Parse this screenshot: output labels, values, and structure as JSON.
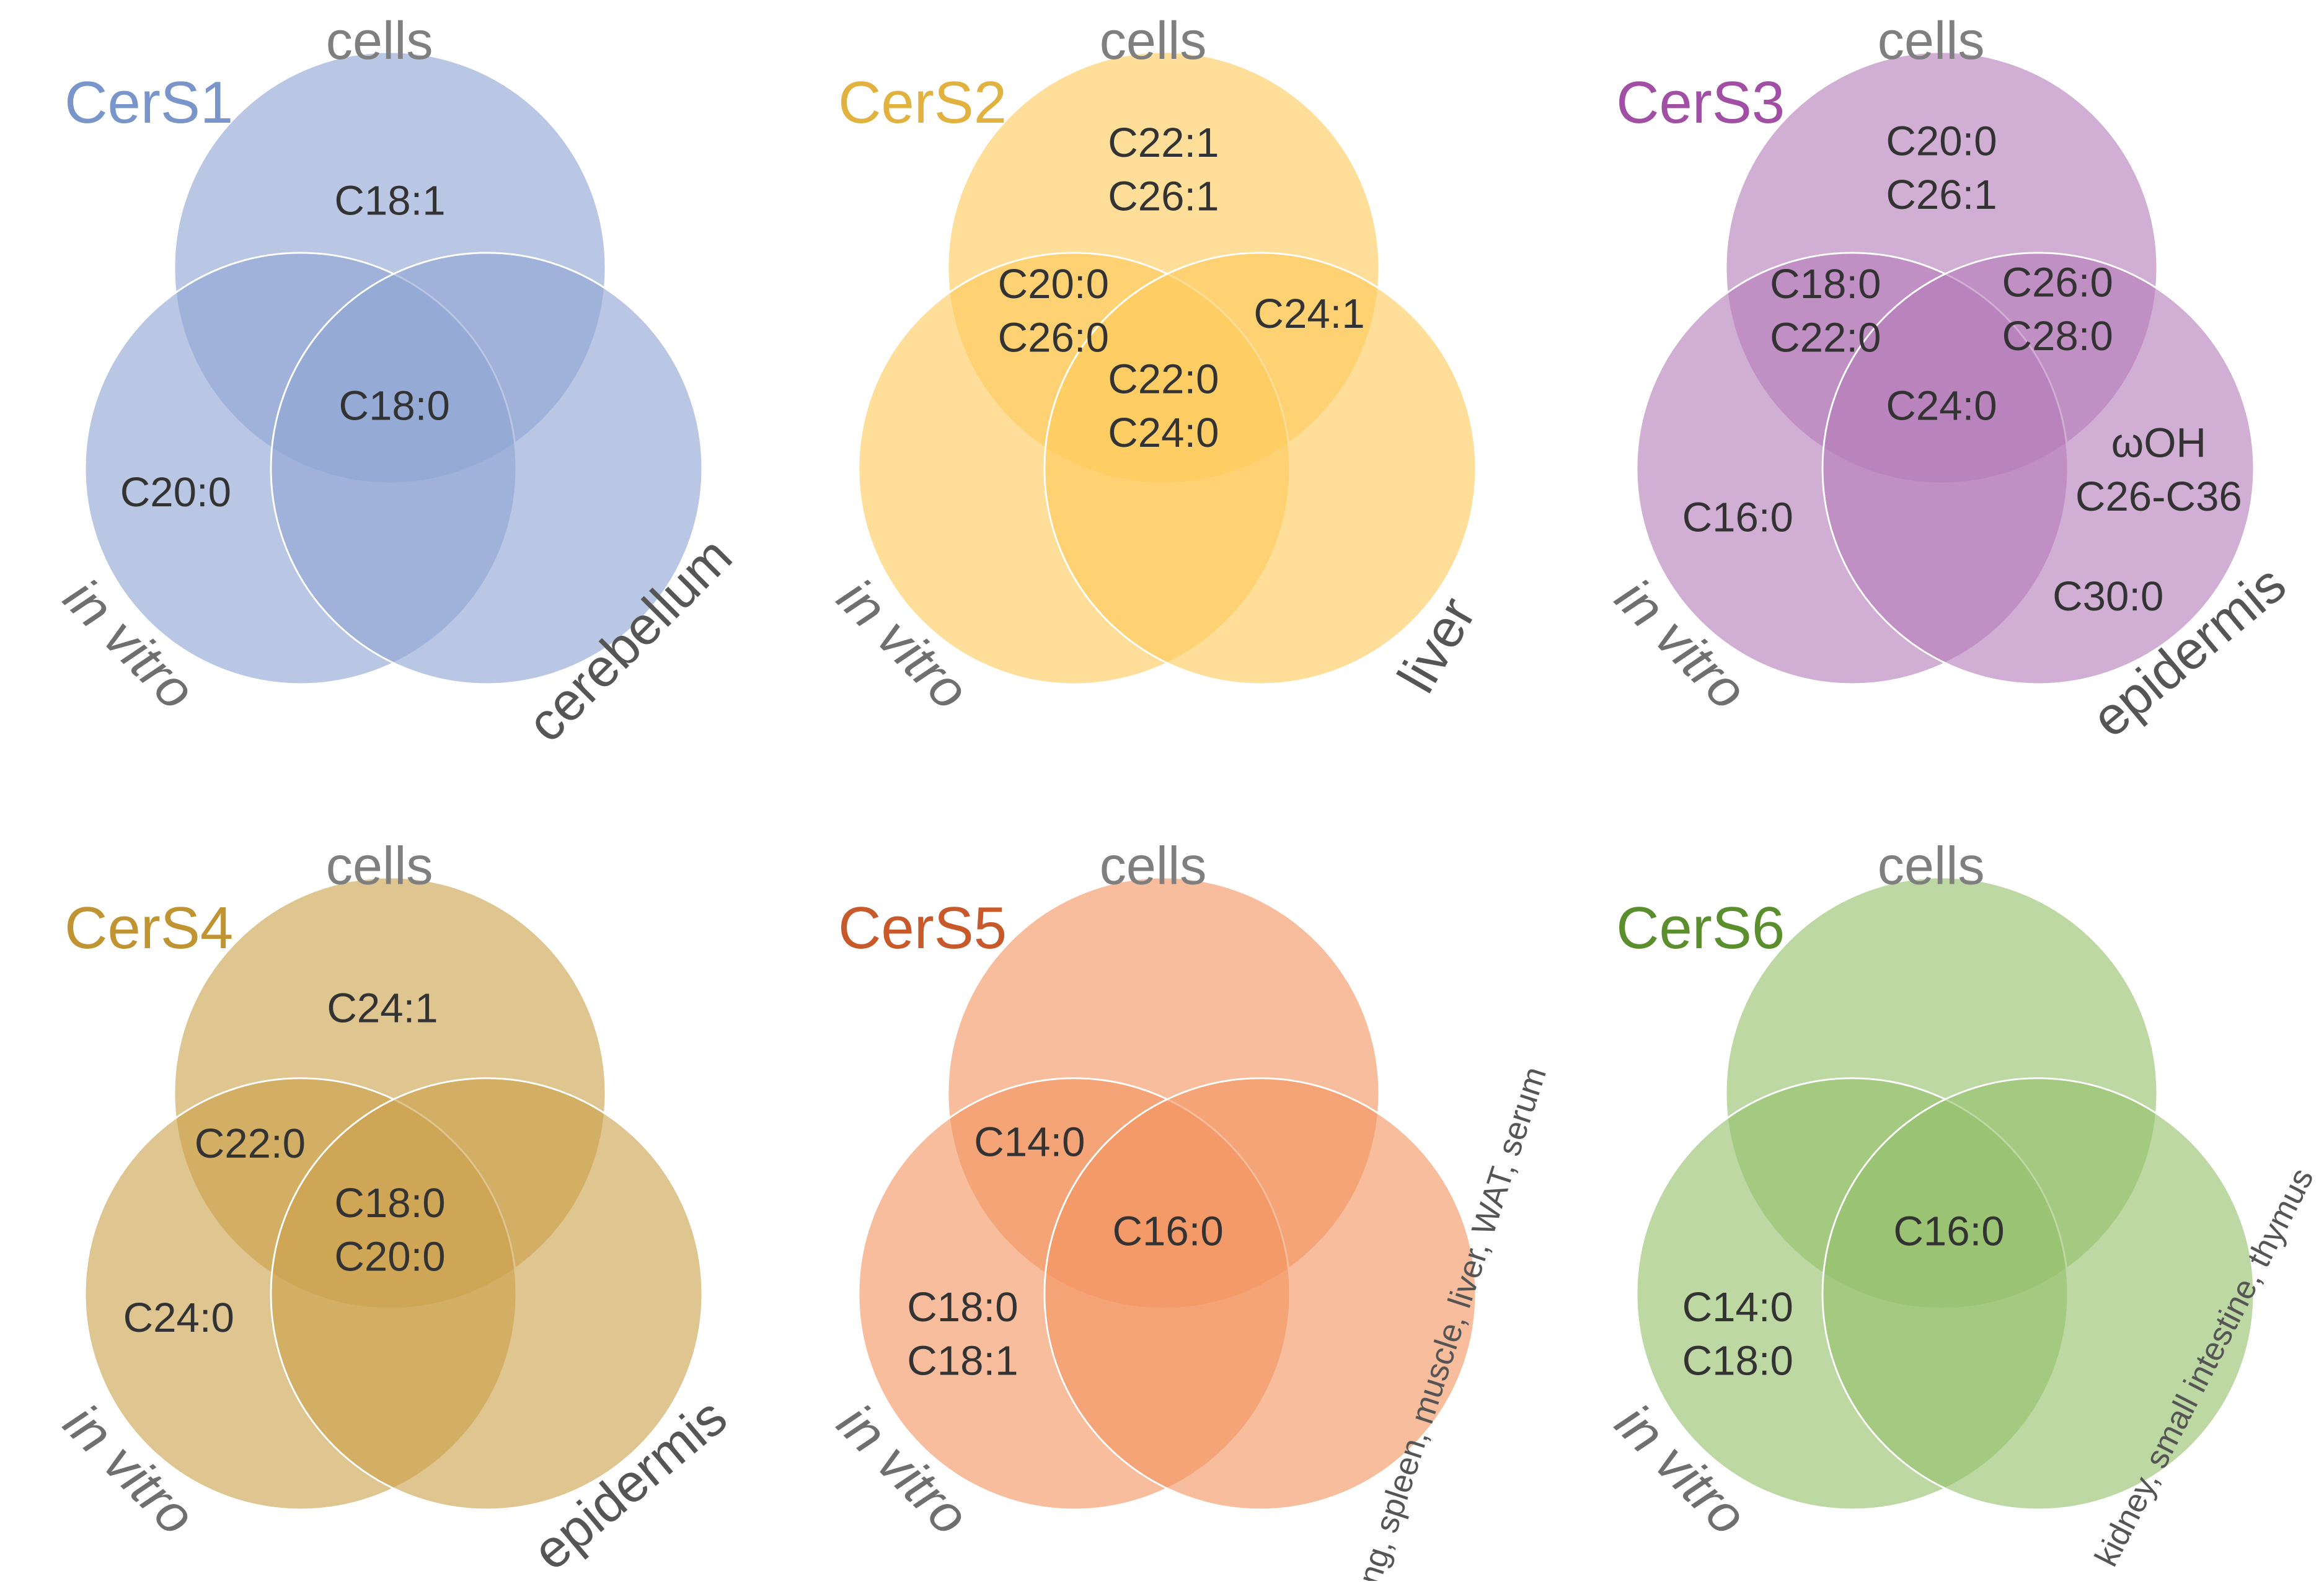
{
  "panels": [
    {
      "title": "CerS1",
      "color": "#8fa5d3",
      "title_color": "#7a95c9",
      "top_label": "cells",
      "left_label": "in vitro",
      "right_label": "cerebellum",
      "regions": [
        [
          "C18:1"
        ],
        [
          "C18:0"
        ],
        [
          "C20:0"
        ]
      ]
    },
    {
      "title": "CerS2",
      "color": "#fdc95a",
      "title_color": "#e2b240",
      "top_label": "cells",
      "left_label": "in vitro",
      "right_label": "liver",
      "regions": [
        [
          "C22:1",
          "C26:1"
        ],
        [
          "C20:0",
          "C26:0"
        ],
        [
          "C24:1"
        ],
        [
          "C22:0",
          "C24:0"
        ]
      ]
    },
    {
      "title": "CerS3",
      "color": "#b47cb9",
      "title_color": "#a04fa5",
      "top_label": "cells",
      "left_label": "in vitro",
      "right_label": "epidermis",
      "regions": [
        [
          "C20:0",
          "C26:1"
        ],
        [
          "C18:0",
          "C22:0"
        ],
        [
          "C26:0",
          "C28:0"
        ],
        [
          "C24:0"
        ],
        [
          "C16:0"
        ],
        [
          "ωOH",
          "C26-C36"
        ],
        [
          "C30:0"
        ]
      ]
    },
    {
      "title": "CerS4",
      "color": "#cca24c",
      "title_color": "#c09432",
      "top_label": "cells",
      "left_label": "in vitro",
      "right_label": "epidermis",
      "regions": [
        [
          "C24:1"
        ],
        [
          "C22:0"
        ],
        [
          "C18:0",
          "C20:0"
        ],
        [
          "C24:0"
        ]
      ]
    },
    {
      "title": "CerS5",
      "color": "#f29560",
      "title_color": "#c8592a",
      "top_label": "cells",
      "left_label": "in vitro",
      "right_label": "lung, spleen, muscle, liver, WAT, serum",
      "regions": [
        [
          "C14:0"
        ],
        [
          "C16:0"
        ],
        [
          "C18:0",
          "C18:1"
        ]
      ]
    },
    {
      "title": "CerS6",
      "color": "#94c06b",
      "title_color": "#5b8f2e",
      "top_label": "cells",
      "left_label": "in vitro",
      "right_label": "kidney, small intestine, thymus",
      "regions": [
        [
          "C16:0"
        ],
        [
          "C14:0",
          "C18:0"
        ]
      ]
    }
  ]
}
